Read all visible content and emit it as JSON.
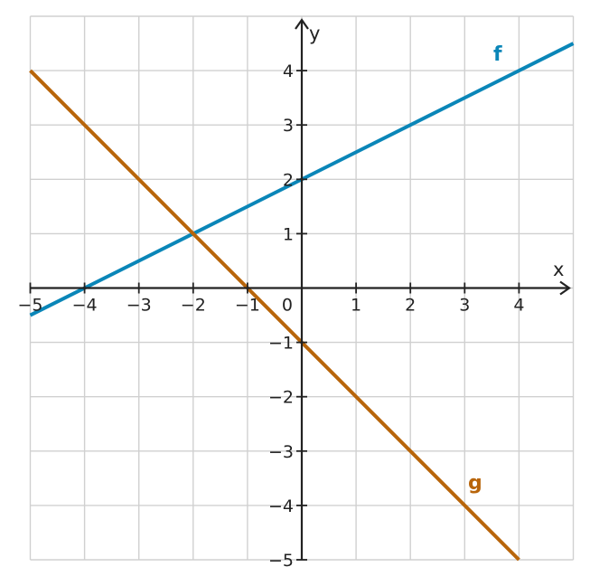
{
  "chart_data": {
    "type": "line",
    "title": "",
    "xlabel": "x",
    "ylabel": "y",
    "xlim": [
      -5,
      5
    ],
    "ylim": [
      -5,
      5
    ],
    "x_ticks": [
      -5,
      -4,
      -3,
      -2,
      -1,
      1,
      2,
      3,
      4
    ],
    "y_ticks": [
      -5,
      -4,
      -3,
      -2,
      -1,
      1,
      2,
      3,
      4
    ],
    "origin_label": "0",
    "grid": true,
    "series": [
      {
        "name": "f",
        "color": "#0a86b8",
        "slope": 0.5,
        "intercept": 2,
        "points": [
          [
            -5,
            -0.5
          ],
          [
            5,
            4.5
          ]
        ]
      },
      {
        "name": "g",
        "color": "#b8650a",
        "slope": -1,
        "intercept": -1,
        "points": [
          [
            -5,
            4
          ],
          [
            4,
            -5
          ]
        ]
      }
    ]
  }
}
